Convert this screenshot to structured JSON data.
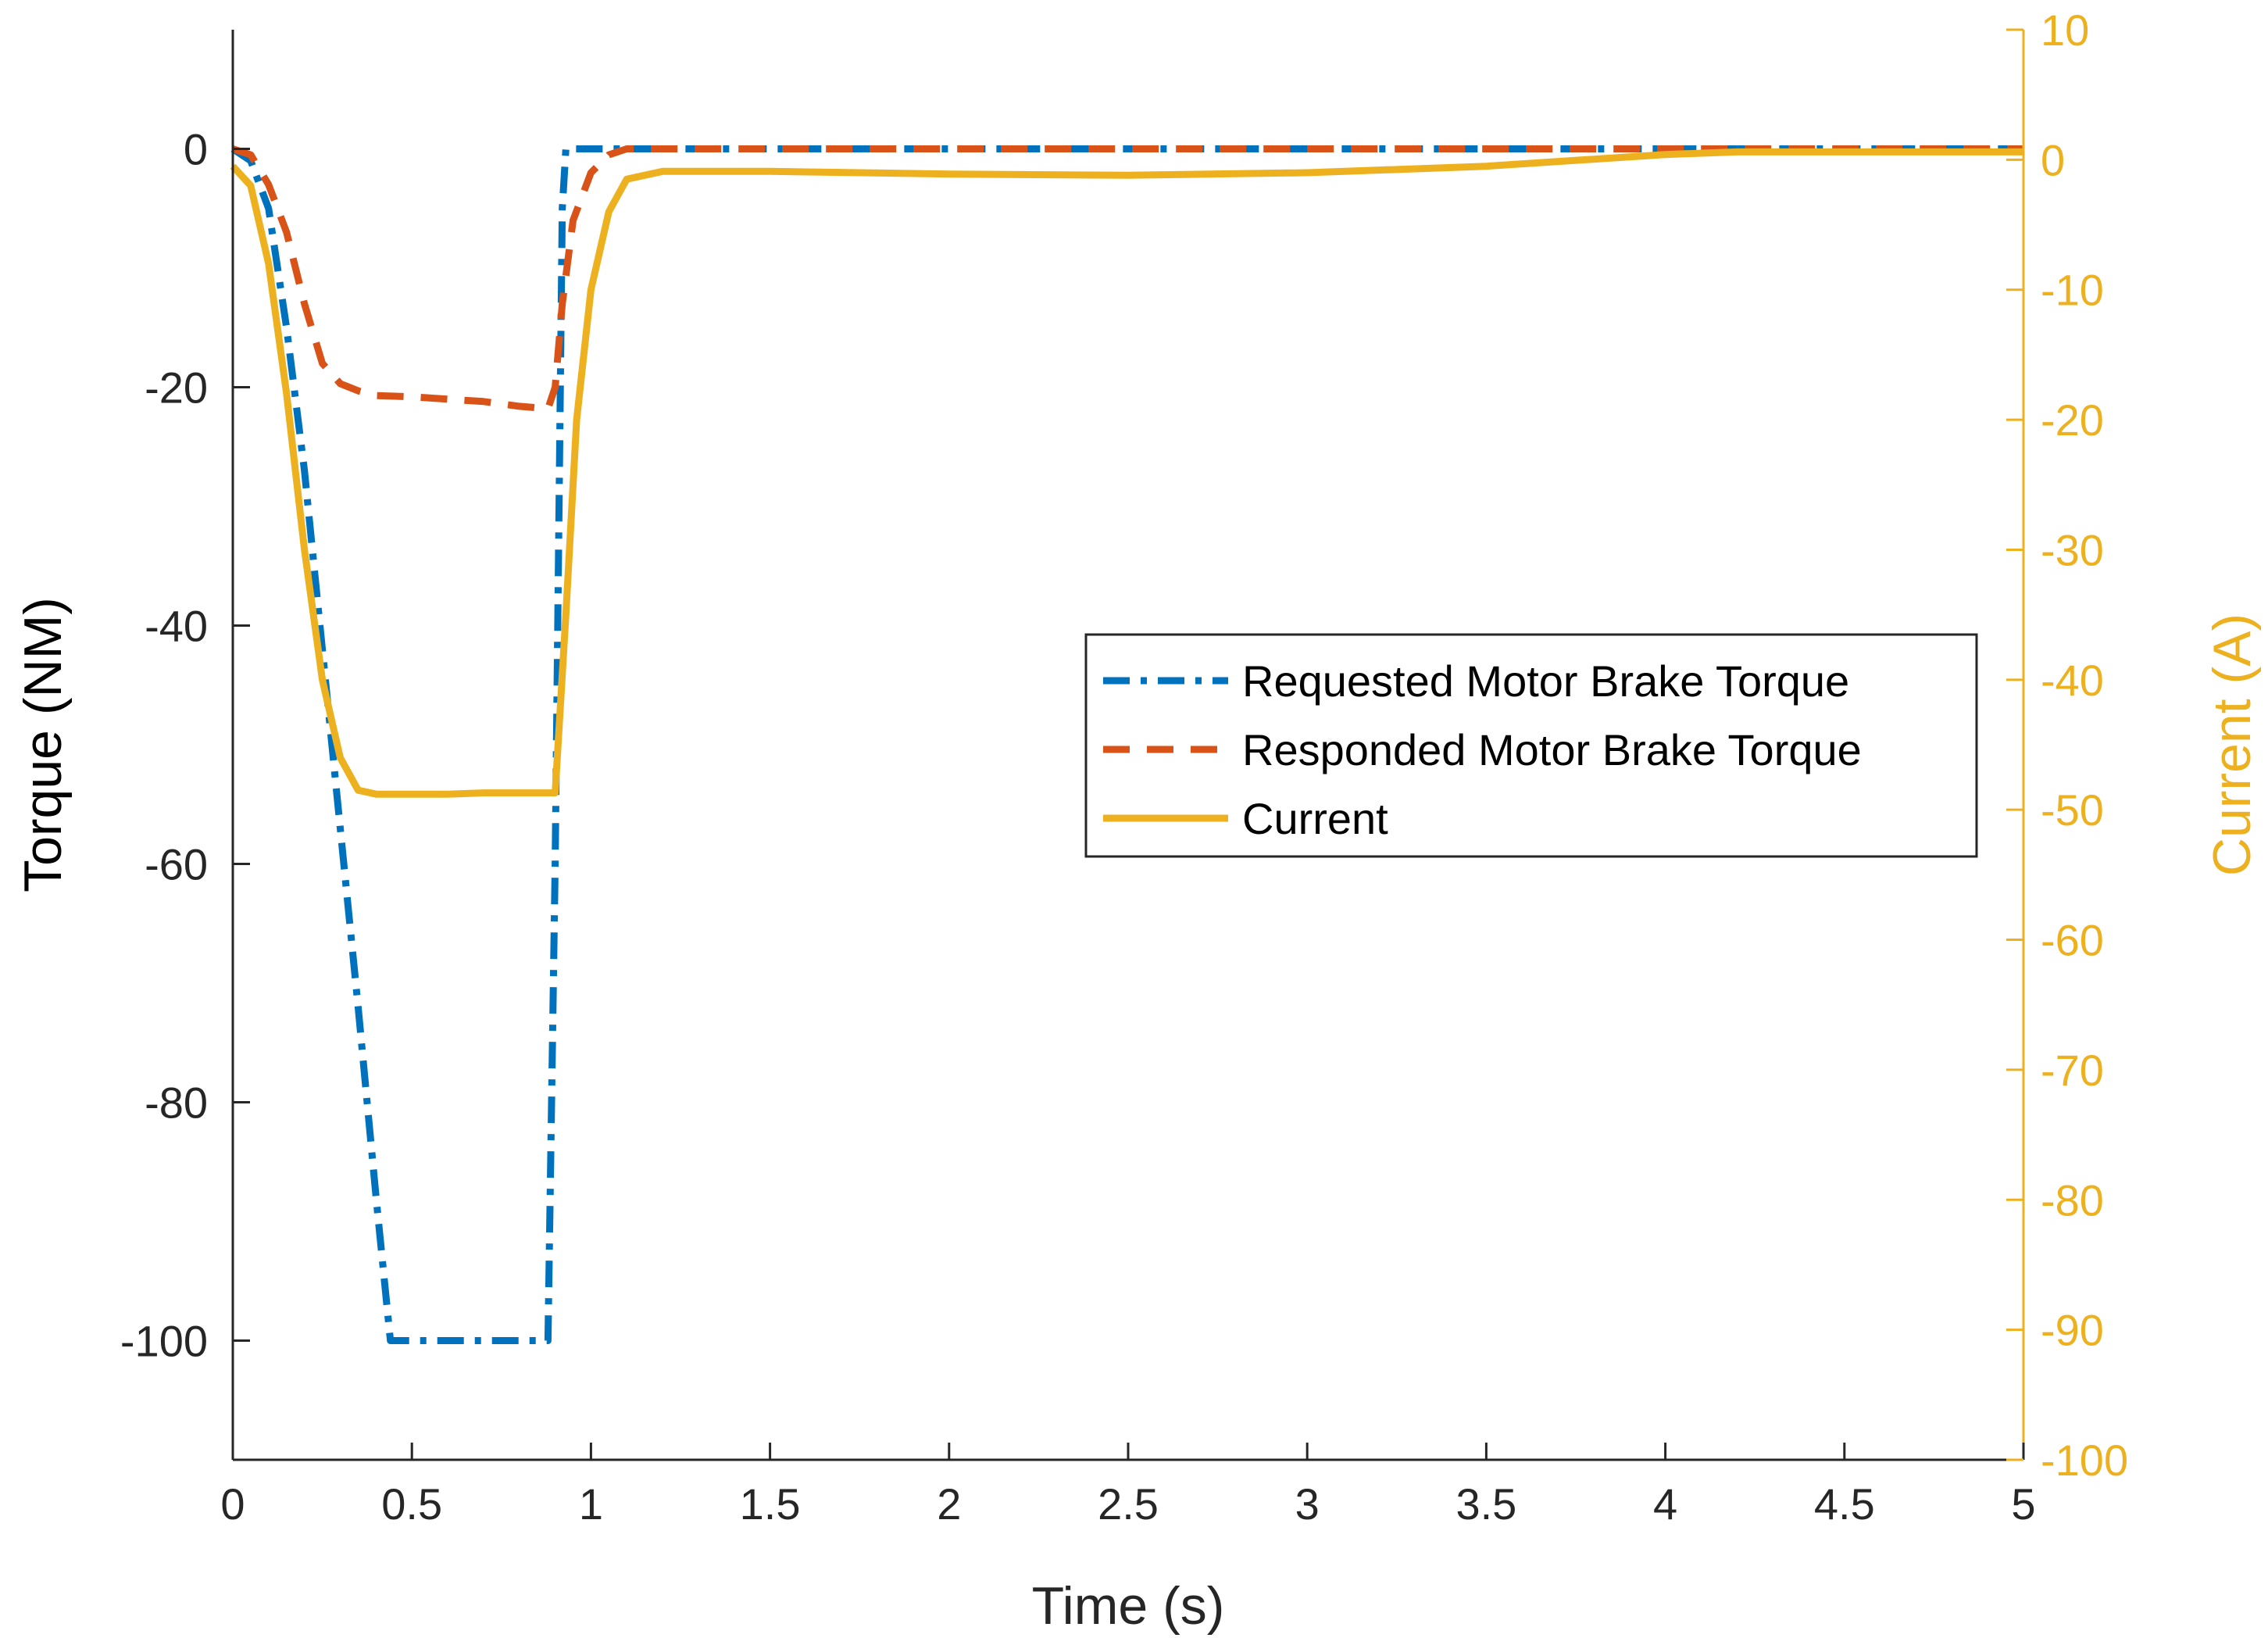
{
  "chart_data": {
    "type": "line",
    "title": "",
    "xlabel": "Time (s)",
    "ylabel_left": "Torque (NM)",
    "ylabel_right": "Current (A)",
    "xlim": [
      0,
      5
    ],
    "ylim_left": [
      -110,
      10
    ],
    "ylim_right": [
      -100,
      10
    ],
    "x_ticks": [
      0,
      0.5,
      1,
      1.5,
      2,
      2.5,
      3,
      3.5,
      4,
      4.5,
      5
    ],
    "x_tick_labels": [
      "0",
      "0.5",
      "1",
      "1.5",
      "2",
      "2.5",
      "3",
      "3.5",
      "4",
      "4.5",
      "5"
    ],
    "y_left_ticks": [
      0,
      -20,
      -40,
      -60,
      -80,
      -100
    ],
    "y_left_tick_labels": [
      "0",
      "-20",
      "-40",
      "-60",
      "-80",
      "-100"
    ],
    "y_right_ticks": [
      10,
      0,
      -10,
      -20,
      -30,
      -40,
      -50,
      -60,
      -70,
      -80,
      -90,
      -100
    ],
    "y_right_tick_labels": [
      "10",
      "0",
      "-10",
      "-20",
      "-30",
      "-40",
      "-50",
      "-60",
      "-70",
      "-80",
      "-90",
      "-100"
    ],
    "grid": false,
    "legend_position": "center-right",
    "series": [
      {
        "name": "Requested Motor Brake Torque",
        "axis": "left",
        "style": "dash-dot",
        "color": "#0072BD",
        "x": [
          0,
          0.05,
          0.1,
          0.15,
          0.2,
          0.25,
          0.3,
          0.35,
          0.4,
          0.44,
          0.5,
          0.6,
          0.7,
          0.8,
          0.88,
          0.9,
          0.92,
          0.93,
          1.0,
          2.0,
          3.0,
          4.0,
          5.0
        ],
        "y": [
          0,
          -1,
          -5,
          -15,
          -27,
          -42,
          -57,
          -72,
          -88,
          -100,
          -100,
          -100,
          -100,
          -100,
          -100,
          -60,
          -5,
          0,
          0,
          0,
          0,
          0,
          0
        ]
      },
      {
        "name": "Responded Motor Brake Torque",
        "axis": "left",
        "style": "dashed",
        "color": "#D95319",
        "x": [
          0,
          0.05,
          0.1,
          0.15,
          0.2,
          0.25,
          0.3,
          0.35,
          0.4,
          0.5,
          0.6,
          0.7,
          0.8,
          0.88,
          0.9,
          0.92,
          0.95,
          1.0,
          1.05,
          1.1,
          1.2,
          2.0,
          3.0,
          4.0,
          5.0
        ],
        "y": [
          0,
          -0.5,
          -3,
          -7,
          -13,
          -18,
          -19.7,
          -20.3,
          -20.7,
          -20.8,
          -21,
          -21.2,
          -21.6,
          -21.8,
          -20,
          -13,
          -6,
          -2,
          -0.5,
          0,
          0,
          0,
          0,
          0,
          0
        ]
      },
      {
        "name": "Current",
        "axis": "right",
        "style": "solid",
        "color": "#EDB120",
        "x": [
          0,
          0.05,
          0.1,
          0.15,
          0.2,
          0.25,
          0.3,
          0.35,
          0.4,
          0.5,
          0.6,
          0.7,
          0.8,
          0.9,
          0.93,
          0.96,
          1.0,
          1.05,
          1.1,
          1.2,
          1.5,
          2.0,
          2.5,
          3.0,
          3.5,
          4.0,
          4.2,
          4.5,
          5.0
        ],
        "y": [
          -0.5,
          -2,
          -8,
          -18,
          -30,
          -40,
          -46,
          -48.5,
          -48.8,
          -48.8,
          -48.8,
          -48.7,
          -48.7,
          -48.7,
          -35,
          -20,
          -10,
          -4,
          -1.5,
          -0.9,
          -0.9,
          -1.1,
          -1.2,
          -1,
          -0.5,
          0.4,
          0.6,
          0.6,
          0.6
        ]
      }
    ]
  }
}
